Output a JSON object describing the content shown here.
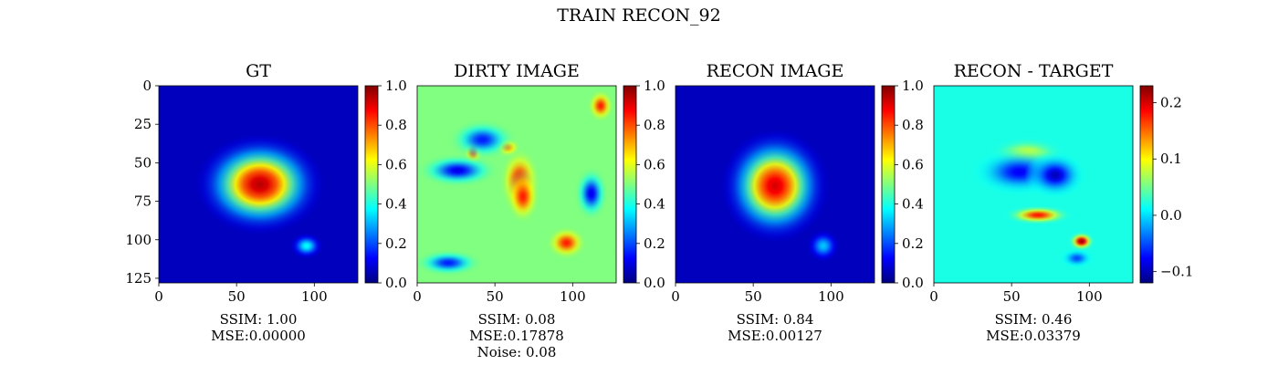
{
  "figure": {
    "suptitle": "TRAIN RECON_92"
  },
  "panels": [
    {
      "title": "GT",
      "stats": [
        "SSIM: 1.00",
        "MSE:0.00000"
      ]
    },
    {
      "title": "DIRTY IMAGE",
      "stats": [
        "SSIM: 0.08",
        "MSE:0.17878",
        "Noise: 0.08"
      ]
    },
    {
      "title": "RECON IMAGE",
      "stats": [
        "SSIM: 0.84",
        "MSE:0.00127"
      ]
    },
    {
      "title": "RECON - TARGET",
      "stats": [
        "SSIM: 0.46",
        "MSE:0.03379"
      ]
    }
  ],
  "chart_data": [
    {
      "type": "heatmap",
      "title": "GT",
      "colormap": "jet",
      "xlim": [
        0,
        128
      ],
      "ylim": [
        128,
        0
      ],
      "xticks": [
        0,
        50,
        100
      ],
      "yticks": [
        0,
        25,
        50,
        75,
        100,
        125
      ],
      "colorbar": {
        "range": [
          0,
          1
        ],
        "ticks": [
          "0.0",
          "0.2",
          "0.4",
          "0.6",
          "0.8",
          "1.0"
        ]
      },
      "features": [
        {
          "kind": "source",
          "x": 65,
          "y": 64,
          "sx": 19,
          "sy": 15,
          "peak": 0.95
        },
        {
          "kind": "source",
          "x": 95,
          "y": 104,
          "sx": 5,
          "sy": 4,
          "peak": 0.38
        }
      ]
    },
    {
      "type": "heatmap",
      "title": "DIRTY IMAGE",
      "colormap": "jet",
      "xlim": [
        0,
        128
      ],
      "ylim": [
        128,
        0
      ],
      "xticks": [
        0,
        50,
        100
      ],
      "yticks": [],
      "colorbar": {
        "range": [
          0,
          1
        ],
        "ticks": [
          "0.0",
          "0.2",
          "0.4",
          "0.6",
          "0.8",
          "1.0"
        ]
      },
      "background_level": 0.5,
      "features": [
        {
          "kind": "blob",
          "x": 66,
          "y": 62,
          "sx": 6,
          "sy": 10,
          "peak": 0.9
        },
        {
          "kind": "blob",
          "x": 68,
          "y": 72,
          "sx": 5,
          "sy": 8,
          "peak": 0.85
        },
        {
          "kind": "blob",
          "x": 36,
          "y": 43,
          "sx": 3,
          "sy": 4,
          "peak": 0.85
        },
        {
          "kind": "blob",
          "x": 118,
          "y": 13,
          "sx": 4,
          "sy": 5,
          "peak": 0.85
        },
        {
          "kind": "blob",
          "x": 96,
          "y": 102,
          "sx": 6,
          "sy": 5,
          "peak": 0.85
        },
        {
          "kind": "blob",
          "x": 58,
          "y": 40,
          "sx": 4,
          "sy": 3,
          "peak": 0.75
        },
        {
          "kind": "blob",
          "x": 26,
          "y": 55,
          "sx": 12,
          "sy": 5,
          "peak": 0.1
        },
        {
          "kind": "blob",
          "x": 42,
          "y": 35,
          "sx": 10,
          "sy": 6,
          "peak": 0.15
        },
        {
          "kind": "blob",
          "x": 112,
          "y": 70,
          "sx": 5,
          "sy": 8,
          "peak": 0.1
        },
        {
          "kind": "blob",
          "x": 20,
          "y": 115,
          "sx": 10,
          "sy": 4,
          "peak": 0.15
        }
      ]
    },
    {
      "type": "heatmap",
      "title": "RECON IMAGE",
      "colormap": "jet",
      "xlim": [
        0,
        128
      ],
      "ylim": [
        128,
        0
      ],
      "xticks": [
        0,
        50,
        100
      ],
      "yticks": [],
      "colorbar": {
        "range": [
          0,
          1
        ],
        "ticks": [
          "0.0",
          "0.2",
          "0.4",
          "0.6",
          "0.8",
          "1.0"
        ]
      },
      "features": [
        {
          "kind": "source",
          "x": 64,
          "y": 65,
          "sx": 16,
          "sy": 17,
          "peak": 0.92
        },
        {
          "kind": "source",
          "x": 95,
          "y": 104,
          "sx": 5,
          "sy": 5,
          "peak": 0.32
        }
      ]
    },
    {
      "type": "heatmap",
      "title": "RECON - TARGET",
      "colormap": "jet",
      "xlim": [
        0,
        128
      ],
      "ylim": [
        128,
        0
      ],
      "xticks": [
        0,
        50,
        100
      ],
      "yticks": [],
      "colorbar": {
        "range": [
          -0.12,
          0.23
        ],
        "ticks": [
          "0.2",
          "0.1",
          "0.0",
          "−0.1"
        ],
        "tick_values": [
          0.2,
          0.1,
          0.0,
          -0.1
        ]
      },
      "background_level": 0.02,
      "features": [
        {
          "kind": "blob",
          "x": 60,
          "y": 44,
          "sx": 11,
          "sy": 5,
          "peak": 0.09
        },
        {
          "kind": "blob",
          "x": 55,
          "y": 56,
          "sx": 14,
          "sy": 7,
          "peak": -0.08
        },
        {
          "kind": "blob",
          "x": 78,
          "y": 58,
          "sx": 9,
          "sy": 7,
          "peak": -0.1
        },
        {
          "kind": "blob",
          "x": 67,
          "y": 84,
          "sx": 10,
          "sy": 3,
          "peak": 0.18
        },
        {
          "kind": "blob",
          "x": 95,
          "y": 101,
          "sx": 4,
          "sy": 3,
          "peak": 0.22
        },
        {
          "kind": "blob",
          "x": 92,
          "y": 112,
          "sx": 5,
          "sy": 3,
          "peak": -0.05
        }
      ]
    }
  ]
}
